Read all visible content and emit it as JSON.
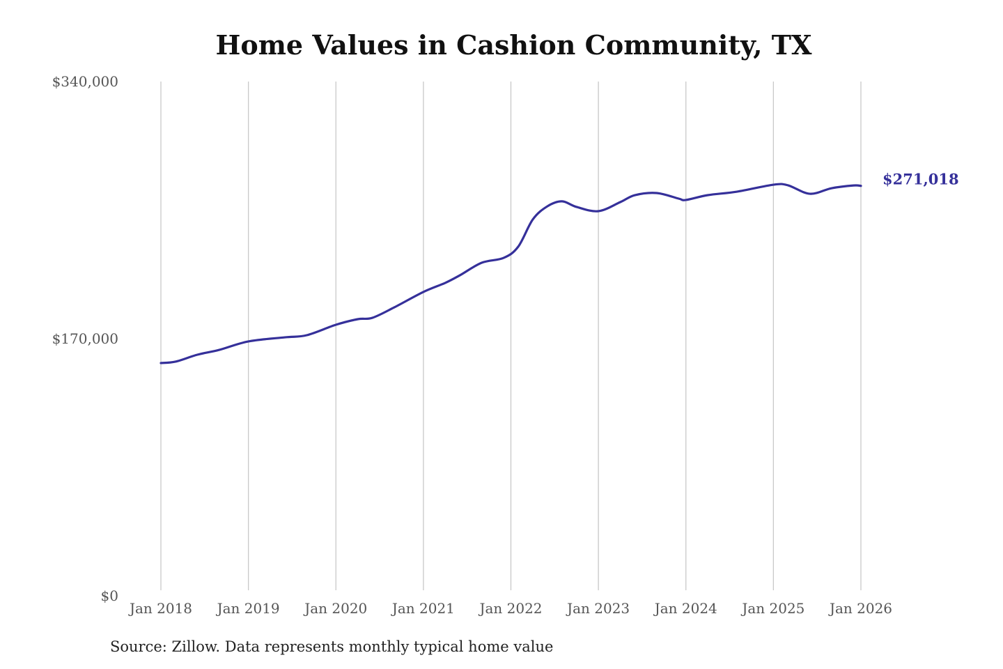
{
  "chart_data": {
    "type": "line",
    "title": "Home Values in Cashion Community, TX",
    "xlabel": "",
    "ylabel": "",
    "ylim": [
      0,
      340000
    ],
    "xlim": [
      "2018-01",
      "2026-01"
    ],
    "grid": "vertical",
    "yticks": [
      "$0",
      "$170,000",
      "$340,000"
    ],
    "ytick_values": [
      0,
      170000,
      340000
    ],
    "xticks": [
      "Jan 2018",
      "Jan 2019",
      "Jan 2020",
      "Jan 2021",
      "Jan 2022",
      "Jan 2023",
      "Jan 2024",
      "Jan 2025",
      "Jan 2026"
    ],
    "series": [
      {
        "name": "Typical home value",
        "color": "#35309a",
        "x": [
          "2018-01",
          "2018-03",
          "2018-06",
          "2018-09",
          "2019-01",
          "2019-06",
          "2019-09",
          "2020-01",
          "2020-04",
          "2020-06",
          "2020-09",
          "2021-01",
          "2021-04",
          "2021-06",
          "2021-09",
          "2021-12",
          "2022-02",
          "2022-04",
          "2022-06",
          "2022-08",
          "2022-10",
          "2023-01",
          "2023-04",
          "2023-06",
          "2023-09",
          "2023-12",
          "2024-01",
          "2024-04",
          "2024-08",
          "2025-01",
          "2025-03",
          "2025-06",
          "2025-09",
          "2025-12",
          "2026-01"
        ],
        "values": [
          153900,
          154800,
          159400,
          162600,
          168200,
          170900,
          172300,
          179200,
          182900,
          183800,
          190700,
          200900,
          206900,
          211900,
          220200,
          223400,
          230800,
          248800,
          257500,
          260800,
          257100,
          254300,
          260300,
          264900,
          266300,
          262600,
          261700,
          264900,
          267200,
          271800,
          271400,
          265800,
          269500,
          271300,
          271018
        ]
      }
    ],
    "end_label": "$271,018",
    "source": "Source: Zillow. Data represents monthly typical home value"
  }
}
